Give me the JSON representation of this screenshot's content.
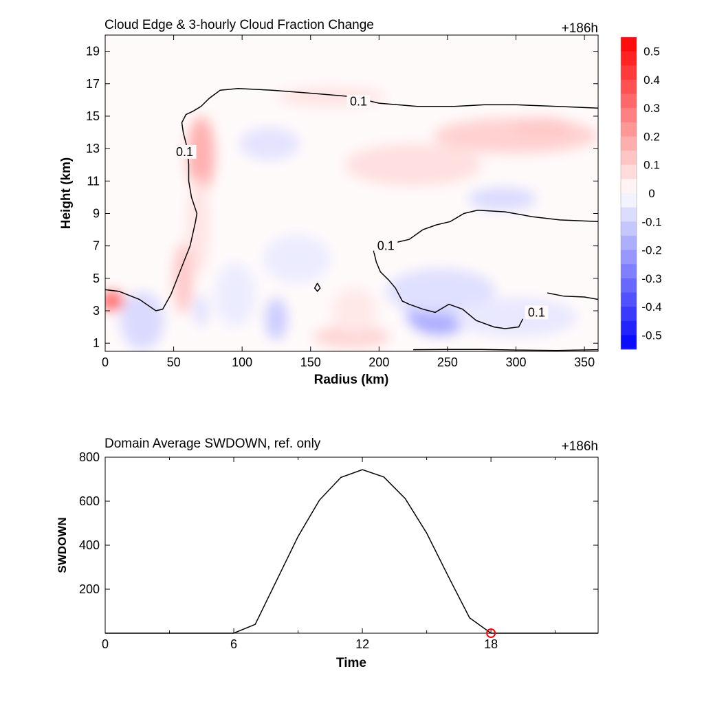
{
  "chart_data": [
    {
      "type": "heatmap",
      "title": "Cloud Edge & 3-hourly Cloud Fraction Change",
      "time_label": "+186h",
      "xlabel": "Radius (km)",
      "ylabel": "Height (km)",
      "xlim": [
        0,
        360
      ],
      "ylim": [
        0.5,
        20
      ],
      "xticks": [
        0,
        50,
        100,
        150,
        200,
        250,
        300,
        350
      ],
      "yticks": [
        1,
        3,
        5,
        7,
        9,
        11,
        13,
        15,
        17,
        19
      ],
      "colorbar": {
        "min": -0.55,
        "max": 0.55,
        "ticks": [
          0.5,
          0.4,
          0.3,
          0.2,
          0.1,
          0,
          -0.1,
          -0.2,
          -0.3,
          -0.4,
          -0.5
        ],
        "tick_labels": [
          "0.5",
          "0.4",
          "0.3",
          "0.2",
          "0.1",
          "0",
          "-0.1",
          "-0.2",
          "-0.3",
          "-0.4",
          "-0.5"
        ],
        "low_color": "#0000ff",
        "mid_color": "#ffffff",
        "high_color": "#ff0000"
      },
      "contour_level_label": "0.1",
      "contour_labels": [
        {
          "x": 185,
          "y": 15.9,
          "text": "0.1"
        },
        {
          "x": 58,
          "y": 12.8,
          "text": "0.1"
        },
        {
          "x": 205,
          "y": 7.0,
          "text": "0.1"
        },
        {
          "x": 315,
          "y": 2.9,
          "text": "0.1"
        }
      ],
      "contours": [
        [
          [
            0,
            4.3
          ],
          [
            10,
            4.2
          ],
          [
            25,
            3.7
          ],
          [
            37,
            3.0
          ],
          [
            42,
            3.1
          ],
          [
            48,
            4.0
          ],
          [
            55,
            5.5
          ],
          [
            62,
            7.0
          ],
          [
            66,
            8.5
          ],
          [
            67,
            9.0
          ],
          [
            63,
            10.0
          ],
          [
            61,
            11.0
          ],
          [
            61,
            12.0
          ],
          [
            60,
            13.0
          ],
          [
            57,
            14.0
          ],
          [
            56,
            14.6
          ],
          [
            59,
            15.1
          ],
          [
            64,
            15.3
          ],
          [
            70,
            15.6
          ],
          [
            76,
            16.1
          ],
          [
            84,
            16.6
          ],
          [
            97,
            16.7
          ],
          [
            122,
            16.6
          ],
          [
            152,
            16.4
          ],
          [
            180,
            16.2
          ],
          [
            200,
            15.8
          ],
          [
            228,
            15.6
          ],
          [
            255,
            15.6
          ],
          [
            277,
            15.7
          ],
          [
            300,
            15.7
          ],
          [
            330,
            15.6
          ],
          [
            360,
            15.5
          ]
        ],
        [
          [
            196,
            6.7
          ],
          [
            198,
            6.0
          ],
          [
            201,
            5.4
          ],
          [
            207,
            4.9
          ],
          [
            212,
            4.4
          ],
          [
            217,
            3.6
          ],
          [
            222,
            3.4
          ],
          [
            232,
            3.1
          ],
          [
            241,
            2.9
          ],
          [
            251,
            3.4
          ],
          [
            261,
            3.1
          ],
          [
            271,
            2.4
          ],
          [
            284,
            2.0
          ],
          [
            292,
            1.9
          ],
          [
            302,
            2.0
          ],
          [
            305,
            2.5
          ]
        ],
        [
          [
            212,
            7.2
          ],
          [
            222,
            7.4
          ],
          [
            232,
            8.0
          ],
          [
            242,
            8.3
          ],
          [
            252,
            8.5
          ],
          [
            262,
            9.0
          ],
          [
            272,
            9.2
          ],
          [
            292,
            9.1
          ],
          [
            312,
            8.8
          ],
          [
            332,
            8.6
          ],
          [
            360,
            8.5
          ]
        ],
        [
          [
            323,
            4.1
          ],
          [
            335,
            3.9
          ],
          [
            350,
            3.85
          ],
          [
            360,
            3.7
          ]
        ],
        [
          [
            225,
            0.6
          ],
          [
            250,
            0.62
          ],
          [
            275,
            0.62
          ],
          [
            300,
            0.58
          ],
          [
            330,
            0.55
          ],
          [
            360,
            0.6
          ]
        ],
        [
          [
            155,
            4.7
          ],
          [
            157,
            4.4
          ],
          [
            155,
            4.2
          ],
          [
            153,
            4.4
          ],
          [
            155,
            4.7
          ]
        ]
      ],
      "anomalies": [
        {
          "x": 5,
          "y": 3.6,
          "rx": 9,
          "ry": 0.6,
          "value": 0.32
        },
        {
          "x": 25,
          "y": 2.1,
          "rx": 9,
          "ry": 1.2,
          "value": -0.26
        },
        {
          "x": 27,
          "y": 2.4,
          "rx": 16,
          "ry": 1.8,
          "value": -0.08
        },
        {
          "x": 70,
          "y": 12.6,
          "rx": 10,
          "ry": 2.4,
          "value": 0.17
        },
        {
          "x": 57,
          "y": 5.0,
          "rx": 7,
          "ry": 2.2,
          "value": 0.12
        },
        {
          "x": 68,
          "y": 8.2,
          "rx": 8,
          "ry": 3.0,
          "value": 0.06
        },
        {
          "x": 70,
          "y": 3.0,
          "rx": 5,
          "ry": 1.0,
          "value": -0.07
        },
        {
          "x": 125,
          "y": 2.5,
          "rx": 8,
          "ry": 1.3,
          "value": -0.11
        },
        {
          "x": 180,
          "y": 1.4,
          "rx": 28,
          "ry": 0.7,
          "value": 0.09
        },
        {
          "x": 182,
          "y": 3.0,
          "rx": 16,
          "ry": 1.4,
          "value": 0.05
        },
        {
          "x": 244,
          "y": 2.9,
          "rx": 24,
          "ry": 1.4,
          "value": -0.18
        },
        {
          "x": 245,
          "y": 4.2,
          "rx": 40,
          "ry": 1.4,
          "value": -0.07
        },
        {
          "x": 300,
          "y": 2.6,
          "rx": 45,
          "ry": 1.2,
          "value": -0.05
        },
        {
          "x": 225,
          "y": 12.0,
          "rx": 50,
          "ry": 1.3,
          "value": 0.07
        },
        {
          "x": 300,
          "y": 13.8,
          "rx": 60,
          "ry": 1.1,
          "value": 0.1
        },
        {
          "x": 320,
          "y": 14.3,
          "rx": 22,
          "ry": 0.6,
          "value": 0.12
        },
        {
          "x": 165,
          "y": 16.2,
          "rx": 40,
          "ry": 0.6,
          "value": 0.06
        },
        {
          "x": 120,
          "y": 13.3,
          "rx": 22,
          "ry": 1.0,
          "value": -0.06
        },
        {
          "x": 290,
          "y": 9.9,
          "rx": 25,
          "ry": 0.7,
          "value": -0.08
        },
        {
          "x": 140,
          "y": 6.2,
          "rx": 25,
          "ry": 1.5,
          "value": -0.04
        },
        {
          "x": 95,
          "y": 4.0,
          "rx": 15,
          "ry": 2.0,
          "value": -0.04
        }
      ]
    },
    {
      "type": "line",
      "title": "Domain Average SWDOWN, ref. only",
      "time_label": "+186h",
      "xlabel": "Time",
      "ylabel": "SWDOWN",
      "xlim": [
        0,
        23
      ],
      "ylim": [
        0,
        800
      ],
      "xticks": [
        0,
        6,
        12,
        18
      ],
      "yticks": [
        200,
        400,
        600,
        800
      ],
      "x": [
        0,
        1,
        2,
        3,
        4,
        5,
        6,
        7,
        8,
        9,
        10,
        11,
        12,
        13,
        14,
        15,
        16,
        17,
        18,
        19,
        20,
        21,
        22,
        23
      ],
      "y": [
        0,
        0,
        0,
        0,
        0,
        0,
        0,
        40,
        240,
        440,
        605,
        708,
        743,
        710,
        612,
        455,
        260,
        70,
        0,
        0,
        0,
        0,
        0,
        0
      ],
      "marker": {
        "x": 18,
        "y": 0,
        "color": "#ff0000"
      }
    }
  ]
}
